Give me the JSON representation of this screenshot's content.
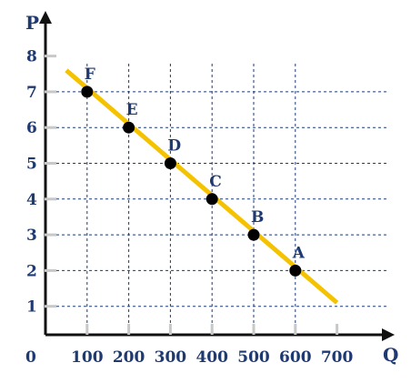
{
  "chart_data": {
    "type": "line",
    "title": "",
    "xlabel": "Q",
    "ylabel": "P",
    "origin_label": "0",
    "xlim": [
      0,
      800
    ],
    "ylim": [
      0,
      8.4
    ],
    "x_ticks": [
      100,
      200,
      300,
      400,
      500,
      600,
      700
    ],
    "x_tick_labels": [
      "100",
      "200",
      "300",
      "400",
      "500",
      "600",
      "700"
    ],
    "y_ticks": [
      1,
      2,
      3,
      4,
      5,
      6,
      7,
      8
    ],
    "y_tick_labels": [
      "1",
      "2",
      "3",
      "4",
      "5",
      "6",
      "7",
      "8"
    ],
    "grid": true,
    "line": {
      "x": [
        50,
        700
      ],
      "y": [
        7.6,
        1.1
      ],
      "color": "#f5c200"
    },
    "points": [
      {
        "label": "A",
        "x": 600,
        "y": 2
      },
      {
        "label": "B",
        "x": 500,
        "y": 3
      },
      {
        "label": "C",
        "x": 400,
        "y": 4
      },
      {
        "label": "D",
        "x": 300,
        "y": 5
      },
      {
        "label": "E",
        "x": 200,
        "y": 6
      },
      {
        "label": "F",
        "x": 100,
        "y": 7
      }
    ],
    "colors": {
      "axis": "#111111",
      "grid": "#1f3a70",
      "text": "#1f3a70",
      "point": "#000000",
      "tick_mark": "#c8c8c8"
    }
  }
}
